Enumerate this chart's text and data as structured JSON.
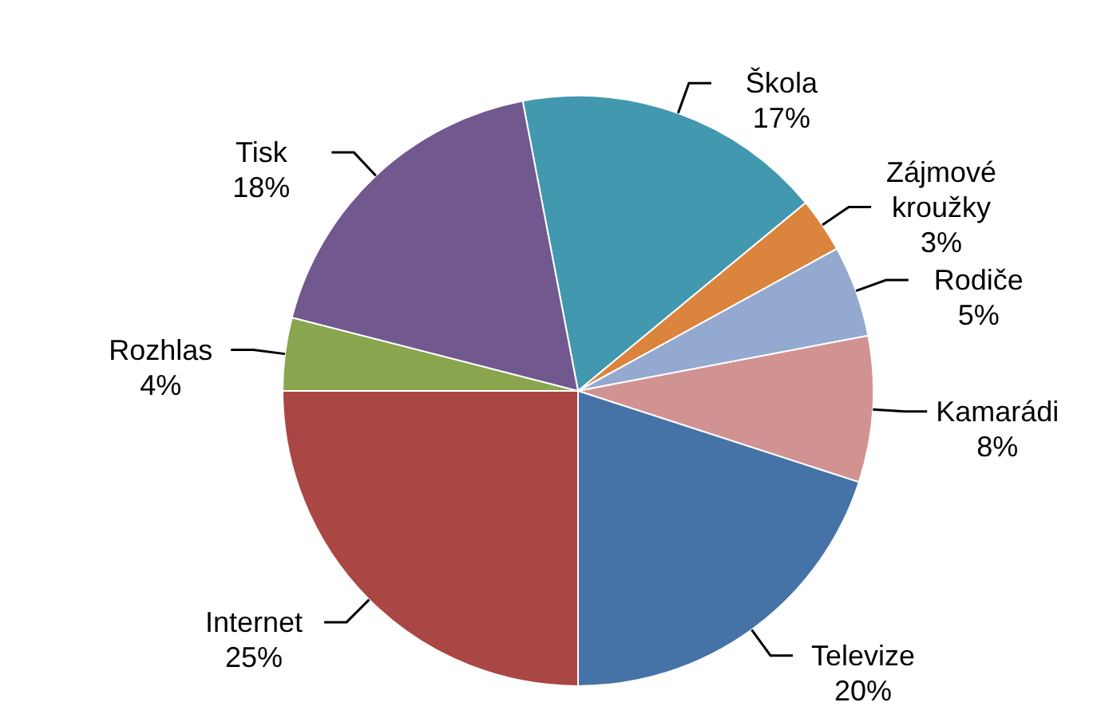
{
  "chart_data": {
    "type": "pie",
    "categories": [
      "Škola",
      "Zájmové kroužky",
      "Rodiče",
      "Kamarádi",
      "Televize",
      "Internet",
      "Rozhlas",
      "Tisk"
    ],
    "values": [
      17,
      3,
      5,
      8,
      20,
      25,
      4,
      18
    ],
    "value_labels": [
      "17%",
      "3%",
      "5%",
      "8%",
      "20%",
      "25%",
      "4%",
      "18%"
    ],
    "colors": [
      "#4198af",
      "#db843d",
      "#93a9cf",
      "#d19392",
      "#4572a7",
      "#aa4643",
      "#89a54e",
      "#71588f"
    ],
    "legend": false
  }
}
